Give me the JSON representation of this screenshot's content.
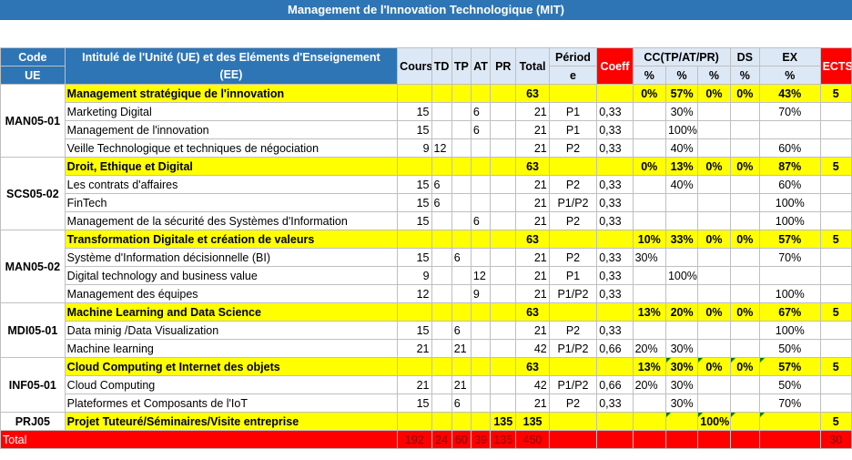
{
  "title": "Management de l'Innovation Technologique (MIT)",
  "headers": {
    "code_top": "Code",
    "code_bottom": "UE",
    "intitule_top": "Intitulé de l'Unité (UE) et des Eléments d'Enseignement",
    "intitule_bottom": "(EE)",
    "cours": "Cours",
    "td": "TD",
    "tp": "TP",
    "at": "AT",
    "pr": "PR",
    "total": "Total",
    "periode_top": "Périod",
    "periode_bottom": "e",
    "coeff": "Coeff",
    "cc": "CC(TP/AT/PR)",
    "ds": "DS",
    "ex": "EX",
    "ects": "ECTS",
    "pct": "%"
  },
  "ues": [
    {
      "code": "MAN05-01",
      "title": "Management stratégique de l'innovation",
      "total": "63",
      "cc1": "0%",
      "cc2": "57%",
      "cc3": "0%",
      "ds": "0%",
      "ex": "43%",
      "ects": "5",
      "elements": [
        {
          "name": "Marketing Digital",
          "cours": "15",
          "td": "",
          "tp": "",
          "at": "6",
          "pr": "",
          "total": "21",
          "periode": "P1",
          "coeff": "0,33",
          "cc1": "",
          "cc2": "30%",
          "cc3": "",
          "ds": "",
          "ex": "70%",
          "ects": ""
        },
        {
          "name": "Management de l'innovation",
          "cours": "15",
          "td": "",
          "tp": "",
          "at": "6",
          "pr": "",
          "total": "21",
          "periode": "P1",
          "coeff": "0,33",
          "cc1": "",
          "cc2": "100%",
          "cc3": "",
          "ds": "",
          "ex": "",
          "ects": ""
        },
        {
          "name": "Veille Technologique et techniques de négociation",
          "cours": "9",
          "td": "12",
          "tp": "",
          "at": "",
          "pr": "",
          "total": "21",
          "periode": "P2",
          "coeff": "0,33",
          "cc1": "",
          "cc2": "40%",
          "cc3": "",
          "ds": "",
          "ex": "60%",
          "ects": ""
        }
      ]
    },
    {
      "code": "SCS05-02",
      "title": "Droit, Ethique et Digital",
      "total": "63",
      "cc1": "0%",
      "cc2": "13%",
      "cc3": "0%",
      "ds": "0%",
      "ex": "87%",
      "ects": "5",
      "elements": [
        {
          "name": "Les contrats d'affaires",
          "cours": "15",
          "td": "6",
          "tp": "",
          "at": "",
          "pr": "",
          "total": "21",
          "periode": "P2",
          "coeff": "0,33",
          "cc1": "",
          "cc2": "40%",
          "cc3": "",
          "ds": "",
          "ex": "60%",
          "ects": ""
        },
        {
          "name": "FinTech",
          "cours": "15",
          "td": "6",
          "tp": "",
          "at": "",
          "pr": "",
          "total": "21",
          "periode": "P1/P2",
          "coeff": "0,33",
          "cc1": "",
          "cc2": "",
          "cc3": "",
          "ds": "",
          "ex": "100%",
          "ects": ""
        },
        {
          "name": "Management de la sécurité des Systèmes d'Information",
          "cours": "15",
          "td": "",
          "tp": "",
          "at": "6",
          "pr": "",
          "total": "21",
          "periode": "P2",
          "coeff": "0,33",
          "cc1": "",
          "cc2": "",
          "cc3": "",
          "ds": "",
          "ex": "100%",
          "ects": ""
        }
      ]
    },
    {
      "code": "MAN05-02",
      "title": "Transformation Digitale et création de valeurs",
      "total": "63",
      "cc1": "10%",
      "cc2": "33%",
      "cc3": "0%",
      "ds": "0%",
      "ex": "57%",
      "ects": "5",
      "elements": [
        {
          "name": "Système d'Information décisionnelle (BI)",
          "cours": "15",
          "td": "",
          "tp": "6",
          "at": "",
          "pr": "",
          "total": "21",
          "periode": "P2",
          "coeff": "0,33",
          "cc1": "30%",
          "cc2": "",
          "cc3": "",
          "ds": "",
          "ex": "70%",
          "ects": ""
        },
        {
          "name": "Digital technology and business value",
          "cours": "9",
          "td": "",
          "tp": "",
          "at": "12",
          "pr": "",
          "total": "21",
          "periode": "P1",
          "coeff": "0,33",
          "cc1": "",
          "cc2": "100%",
          "cc3": "",
          "ds": "",
          "ex": "",
          "ects": ""
        },
        {
          "name": "Management des équipes",
          "cours": "12",
          "td": "",
          "tp": "",
          "at": "9",
          "pr": "",
          "total": "21",
          "periode": "P1/P2",
          "coeff": "0,33",
          "cc1": "",
          "cc2": "",
          "cc3": "",
          "ds": "",
          "ex": "100%",
          "ects": ""
        }
      ]
    },
    {
      "code": "MDI05-01",
      "title": "Machine Learning and Data Science",
      "total": "63",
      "cc1": "13%",
      "cc2": "20%",
      "cc3": "0%",
      "ds": "0%",
      "ex": "67%",
      "ects": "5",
      "elements": [
        {
          "name": "Data minig /Data Visualization",
          "cours": "15",
          "td": "",
          "tp": "6",
          "at": "",
          "pr": "",
          "total": "21",
          "periode": "P2",
          "coeff": "0,33",
          "cc1": "",
          "cc2": "",
          "cc3": "",
          "ds": "",
          "ex": "100%",
          "ects": ""
        },
        {
          "name": "Machine learning",
          "cours": "21",
          "td": "",
          "tp": "21",
          "at": "",
          "pr": "",
          "total": "42",
          "periode": "P1/P2",
          "coeff": "0,66",
          "cc1": "20%",
          "cc2": "30%",
          "cc3": "",
          "ds": "",
          "ex": "50%",
          "ects": ""
        }
      ]
    },
    {
      "code": "INF05-01",
      "title": "Cloud Computing et Internet des objets",
      "total": "63",
      "cc1": "13%",
      "cc2": "30%",
      "cc3": "0%",
      "ds": "0%",
      "ex": "57%",
      "ects": "5",
      "elements": [
        {
          "name": "Cloud Computing",
          "cours": "21",
          "td": "",
          "tp": "21",
          "at": "",
          "pr": "",
          "total": "42",
          "periode": "P1/P2",
          "coeff": "0,66",
          "cc1": "20%",
          "cc2": "30%",
          "cc3": "",
          "ds": "",
          "ex": "50%",
          "ects": ""
        },
        {
          "name": "Plateformes et Composants de l'IoT",
          "cours": "15",
          "td": "",
          "tp": "6",
          "at": "",
          "pr": "",
          "total": "21",
          "periode": "P2",
          "coeff": "0,33",
          "cc1": "",
          "cc2": "30%",
          "cc3": "",
          "ds": "",
          "ex": "70%",
          "ects": ""
        }
      ]
    },
    {
      "code": "PRJ05",
      "title": "Projet Tuteuré/Séminaires/Visite entreprise",
      "pr": "135",
      "total": "135",
      "cc1": "",
      "cc2": "",
      "cc3": "100%",
      "ds": "",
      "ex": "",
      "ects": "5",
      "elements": []
    }
  ],
  "totals": {
    "label": "Total",
    "cours": "192",
    "td": "24",
    "tp": "60",
    "at": "39",
    "pr": "135",
    "total": "450",
    "ects": "30"
  }
}
